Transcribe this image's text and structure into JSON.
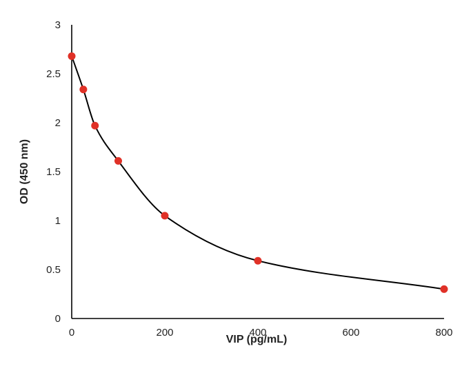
{
  "chart_data": {
    "type": "scatter",
    "title": "",
    "xlabel": "VIP  (pg/mL)",
    "ylabel": "OD (450 nm)",
    "xlim": [
      0,
      800
    ],
    "ylim": [
      0,
      3
    ],
    "x_ticks": [
      0,
      200,
      400,
      600,
      800
    ],
    "y_ticks": [
      0,
      0.5,
      1,
      1.5,
      2,
      2.5,
      3
    ],
    "x_tick_labels": [
      "0",
      "200",
      "400",
      "600",
      "800"
    ],
    "y_tick_labels": [
      "0",
      "0.5",
      "1",
      "1.5",
      "2",
      "2.5",
      "3"
    ],
    "grid": false,
    "legend": "none",
    "series": [
      {
        "x": [
          0,
          25,
          50,
          100,
          200,
          400,
          800
        ],
        "y": [
          2.68,
          2.34,
          1.97,
          1.61,
          1.05,
          0.59,
          0.3
        ],
        "marker_color": "#e03127",
        "trendline": "smooth",
        "trendline_color": "#000000"
      }
    ]
  }
}
